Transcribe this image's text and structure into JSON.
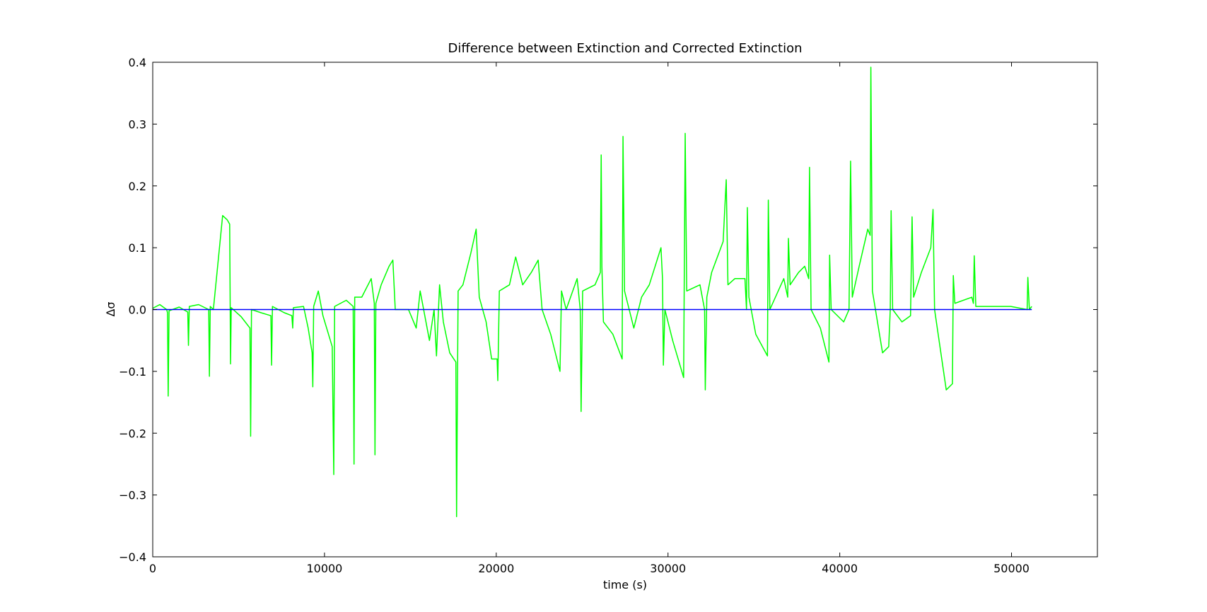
{
  "chart_data": {
    "type": "line",
    "title": "Difference between Extinction and Corrected Extinction",
    "x_label": "time (s)",
    "y_label": "Δσ",
    "xlim": [
      0,
      55000
    ],
    "xticks": [
      0,
      10000,
      20000,
      30000,
      40000,
      50000
    ],
    "ylim": [
      -0.4,
      0.4
    ],
    "yticks": [
      {
        "value": -0.4,
        "label": "−0.4"
      },
      {
        "value": -0.3,
        "label": "−0.3"
      },
      {
        "value": -0.2,
        "label": "−0.2"
      },
      {
        "value": -0.1,
        "label": "−0.1"
      },
      {
        "value": 0,
        "label": "0.0"
      },
      0.1,
      0.2,
      0.3,
      0.4
    ],
    "grid": false,
    "series": [
      {
        "color": "#00ff00",
        "x": [
          0,
          410,
          810,
          860,
          900,
          950,
          1540,
          2040,
          2080,
          2130,
          2670,
          3260,
          3300,
          3350,
          3530,
          4070,
          4340,
          4480,
          4530,
          4570,
          5160,
          5660,
          5700,
          5750,
          6290,
          6880,
          6920,
          6970,
          7650,
          8100,
          8150,
          8190,
          8780,
          9050,
          9280,
          9320,
          9370,
          9640,
          9910,
          10450,
          10540,
          10590,
          11270,
          11670,
          11720,
          11760,
          12170,
          12720,
          12900,
          12940,
          12990,
          13300,
          13760,
          13980,
          14120,
          14890,
          15340,
          15570,
          16110,
          16380,
          16520,
          16700,
          16920,
          17290,
          17650,
          17690,
          17780,
          18060,
          18510,
          18830,
          19010,
          19410,
          19730,
          20050,
          20090,
          20180,
          20770,
          21130,
          21540,
          22040,
          22440,
          22670,
          23170,
          23710,
          23800,
          24070,
          24710,
          24890,
          24940,
          25030,
          25750,
          26060,
          26110,
          26150,
          26240,
          26790,
          27330,
          27380,
          27470,
          28010,
          28460,
          28910,
          29590,
          29680,
          29730,
          29820,
          30270,
          30910,
          31000,
          31090,
          31860,
          32130,
          32170,
          32260,
          32540,
          33210,
          33390,
          33490,
          33890,
          34480,
          34570,
          34620,
          34710,
          35110,
          35790,
          35840,
          35930,
          36740,
          36970,
          37010,
          37110,
          37600,
          37960,
          38190,
          38240,
          38330,
          38870,
          39370,
          39410,
          39500,
          40230,
          40540,
          40630,
          40730,
          41130,
          41630,
          41770,
          41810,
          41900,
          42490,
          42850,
          42940,
          42990,
          43080,
          43620,
          44120,
          44210,
          44300,
          44750,
          45300,
          45430,
          45520,
          46200,
          46560,
          46610,
          46700,
          47690,
          47780,
          47830,
          47920,
          49960,
          50910,
          50950,
          51040,
          51180
        ],
        "values": [
          0.002,
          0.008,
          0.0,
          -0.005,
          -0.14,
          -0.002,
          0.004,
          -0.004,
          -0.058,
          0.005,
          0.008,
          0.0,
          -0.108,
          0.005,
          0.0,
          0.152,
          0.145,
          0.138,
          -0.088,
          0.003,
          -0.012,
          -0.03,
          -0.205,
          0.0,
          -0.005,
          -0.01,
          -0.09,
          0.005,
          -0.005,
          -0.01,
          -0.03,
          0.003,
          0.005,
          -0.03,
          -0.07,
          -0.125,
          0.005,
          0.03,
          -0.01,
          -0.06,
          -0.267,
          0.005,
          0.015,
          0.005,
          -0.25,
          0.02,
          0.02,
          0.05,
          0.01,
          -0.235,
          0.01,
          0.04,
          0.07,
          0.08,
          0.0,
          0.0,
          -0.03,
          0.03,
          -0.05,
          0.0,
          -0.075,
          0.04,
          -0.02,
          -0.07,
          -0.085,
          -0.335,
          0.03,
          0.04,
          0.09,
          0.13,
          0.02,
          -0.02,
          -0.08,
          -0.08,
          -0.115,
          0.03,
          0.04,
          0.085,
          0.04,
          0.06,
          0.08,
          0.0,
          -0.04,
          -0.1,
          0.03,
          0.0,
          0.05,
          0.0,
          -0.165,
          0.03,
          0.04,
          0.06,
          0.25,
          0.07,
          -0.02,
          -0.04,
          -0.08,
          0.28,
          0.03,
          -0.03,
          0.02,
          0.04,
          0.1,
          0.05,
          -0.09,
          0.0,
          -0.05,
          -0.11,
          0.285,
          0.03,
          0.04,
          0.0,
          -0.13,
          0.02,
          0.06,
          0.11,
          0.21,
          0.04,
          0.05,
          0.05,
          0.0,
          0.165,
          0.02,
          -0.04,
          -0.075,
          0.177,
          0.0,
          0.05,
          0.02,
          0.115,
          0.04,
          0.06,
          0.07,
          0.05,
          0.23,
          0.0,
          -0.03,
          -0.085,
          0.088,
          0.0,
          -0.02,
          0.0,
          0.24,
          0.02,
          0.07,
          0.13,
          0.12,
          0.392,
          0.03,
          -0.07,
          -0.06,
          0.0,
          0.16,
          0.0,
          -0.02,
          -0.01,
          0.15,
          0.02,
          0.06,
          0.1,
          0.162,
          0.0,
          -0.13,
          -0.12,
          0.055,
          0.01,
          0.02,
          0.01,
          0.087,
          0.005,
          0.005,
          0.0,
          0.052,
          0.0,
          0.005
        ]
      },
      {
        "color": "#0000ff",
        "x": [
          0,
          51180
        ],
        "values": [
          0,
          0
        ]
      }
    ]
  }
}
